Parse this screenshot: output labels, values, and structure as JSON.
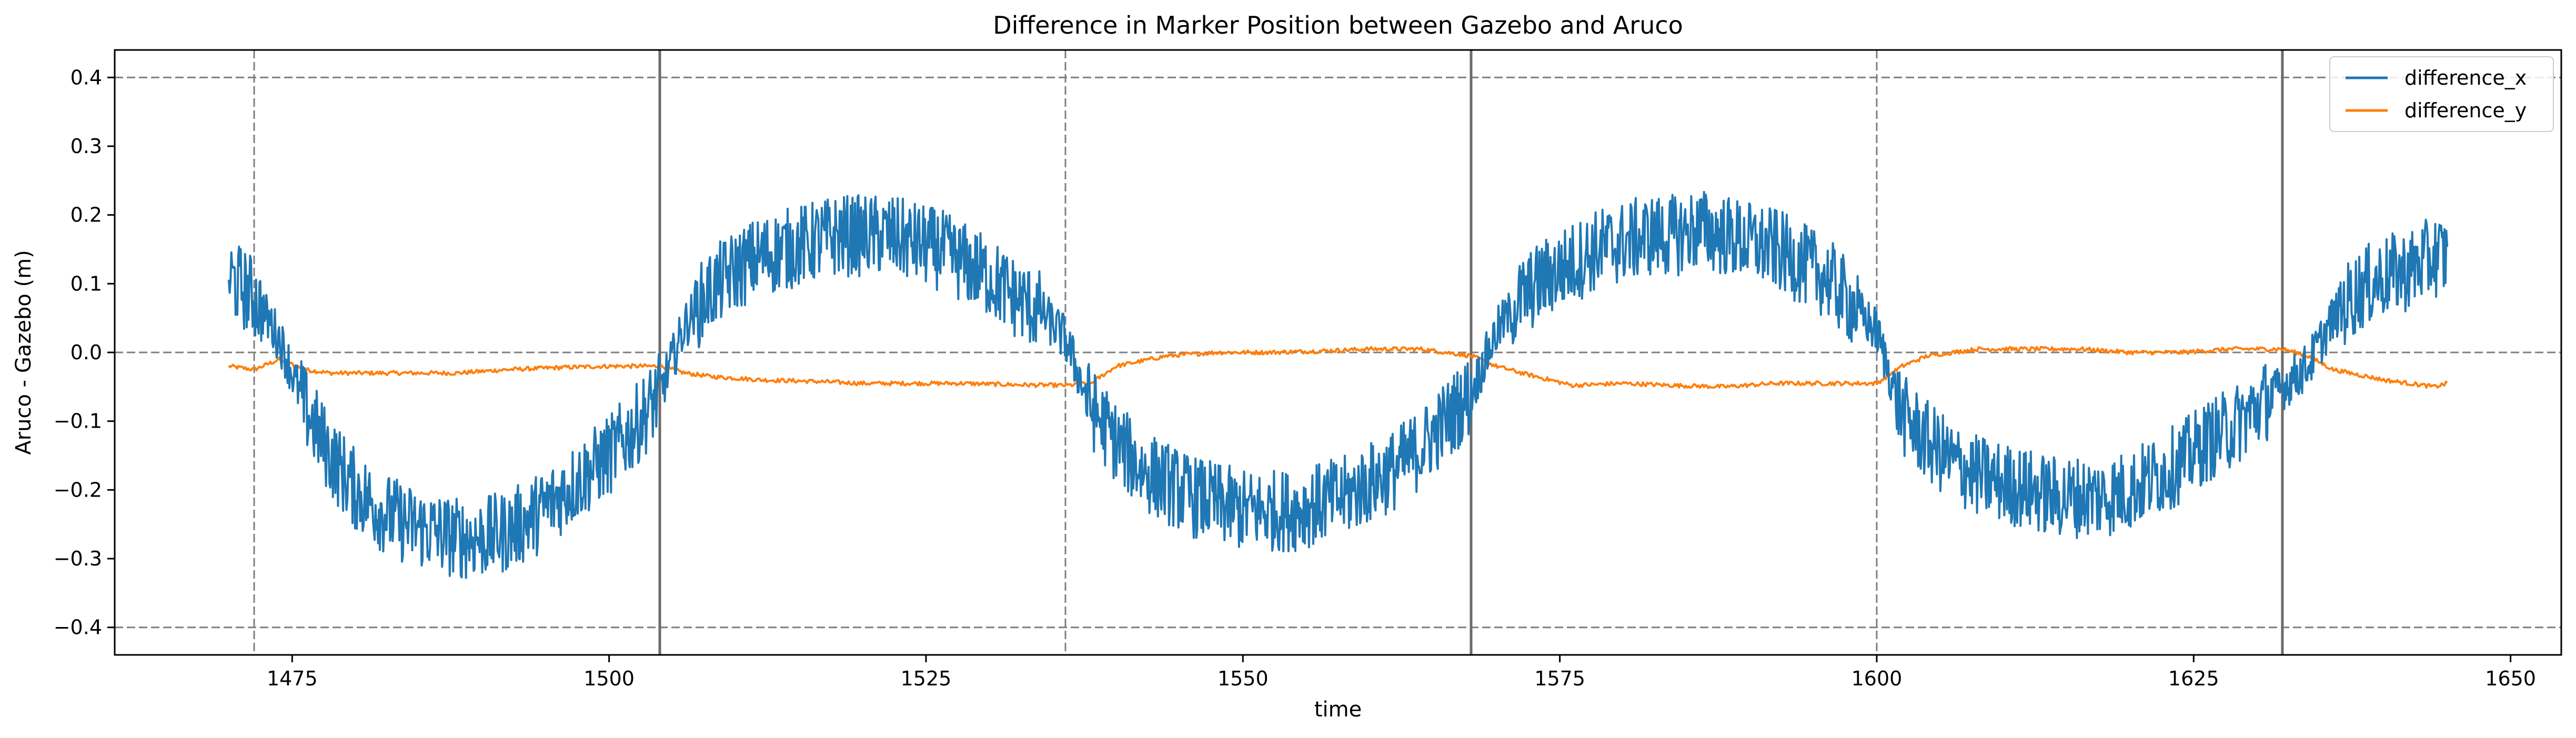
{
  "chart_data": {
    "type": "line",
    "title": "Difference in Marker Position between Gazebo and Aruco",
    "xlabel": "time",
    "ylabel": "Aruco - Gazebo (m)",
    "xlim": [
      1461,
      1654
    ],
    "ylim": [
      -0.44,
      0.44
    ],
    "xticks": [
      1475,
      1500,
      1525,
      1550,
      1575,
      1600,
      1625,
      1650
    ],
    "yticks": [
      -0.4,
      -0.3,
      -0.2,
      -0.1,
      0.0,
      0.1,
      0.2,
      0.3,
      0.4
    ],
    "ytick_labels": [
      "−0.4",
      "−0.3",
      "−0.2",
      "−0.1",
      "0.0",
      "0.1",
      "0.2",
      "0.3",
      "0.4"
    ],
    "legend_position": "top-right",
    "reference_lines": {
      "horizontal_dashed": [
        -0.4,
        0.0,
        0.4
      ],
      "vertical_dashed": [
        1472,
        1536,
        1600
      ],
      "vertical_solid": [
        1504,
        1568,
        1632
      ]
    },
    "series": [
      {
        "name": "difference_x",
        "color": "#1f77b4",
        "noise_amplitude": [
          0.035,
          0.06
        ],
        "x": [
          1470,
          1472,
          1474,
          1476,
          1478,
          1480,
          1482,
          1484,
          1486,
          1488,
          1490,
          1492,
          1494,
          1496,
          1498,
          1500,
          1502,
          1504,
          1506,
          1508,
          1510,
          1512,
          1514,
          1516,
          1518,
          1520,
          1522,
          1524,
          1526,
          1528,
          1530,
          1532,
          1534,
          1536,
          1538,
          1540,
          1542,
          1544,
          1546,
          1548,
          1550,
          1552,
          1554,
          1556,
          1558,
          1560,
          1562,
          1564,
          1566,
          1568,
          1570,
          1572,
          1574,
          1576,
          1578,
          1580,
          1582,
          1584,
          1586,
          1588,
          1590,
          1592,
          1594,
          1596,
          1598,
          1600,
          1602,
          1604,
          1606,
          1608,
          1610,
          1612,
          1614,
          1616,
          1618,
          1620,
          1622,
          1624,
          1626,
          1628,
          1630,
          1632,
          1634,
          1636,
          1638,
          1640,
          1642,
          1644,
          1645
        ],
        "y": [
          0.11,
          0.08,
          0.02,
          -0.08,
          -0.15,
          -0.2,
          -0.23,
          -0.25,
          -0.26,
          -0.27,
          -0.27,
          -0.26,
          -0.24,
          -0.21,
          -0.18,
          -0.15,
          -0.11,
          -0.06,
          0.04,
          0.09,
          0.12,
          0.14,
          0.15,
          0.16,
          0.17,
          0.17,
          0.17,
          0.16,
          0.15,
          0.13,
          0.11,
          0.08,
          0.06,
          0.02,
          -0.08,
          -0.13,
          -0.17,
          -0.19,
          -0.21,
          -0.22,
          -0.23,
          -0.23,
          -0.23,
          -0.22,
          -0.21,
          -0.19,
          -0.17,
          -0.14,
          -0.1,
          -0.06,
          0.03,
          0.08,
          0.11,
          0.13,
          0.15,
          0.16,
          0.17,
          0.17,
          0.18,
          0.17,
          0.16,
          0.15,
          0.13,
          0.11,
          0.07,
          0.03,
          -0.09,
          -0.13,
          -0.16,
          -0.18,
          -0.19,
          -0.2,
          -0.21,
          -0.21,
          -0.21,
          -0.2,
          -0.18,
          -0.16,
          -0.13,
          -0.11,
          -0.08,
          -0.05,
          -0.02,
          0.05,
          0.09,
          0.11,
          0.12,
          0.14,
          0.14
        ]
      },
      {
        "name": "difference_y",
        "color": "#ff7f0e",
        "noise_amplitude": [
          0.003,
          0.003
        ],
        "x": [
          1470,
          1472,
          1474,
          1476,
          1478,
          1480,
          1484,
          1488,
          1492,
          1496,
          1500,
          1504,
          1506,
          1508,
          1512,
          1516,
          1520,
          1524,
          1528,
          1532,
          1536,
          1538,
          1540,
          1544,
          1548,
          1552,
          1556,
          1560,
          1564,
          1568,
          1570,
          1572,
          1576,
          1580,
          1584,
          1588,
          1592,
          1596,
          1600,
          1602,
          1604,
          1608,
          1612,
          1616,
          1620,
          1624,
          1628,
          1632,
          1634,
          1636,
          1640,
          1644,
          1645
        ],
        "y": [
          -0.02,
          -0.025,
          -0.01,
          -0.025,
          -0.03,
          -0.03,
          -0.03,
          -0.03,
          -0.025,
          -0.022,
          -0.02,
          -0.02,
          -0.03,
          -0.035,
          -0.04,
          -0.042,
          -0.045,
          -0.045,
          -0.045,
          -0.047,
          -0.048,
          -0.045,
          -0.02,
          -0.005,
          0.0,
          0.0,
          0.002,
          0.005,
          0.005,
          -0.005,
          -0.02,
          -0.03,
          -0.048,
          -0.045,
          -0.048,
          -0.05,
          -0.045,
          -0.045,
          -0.045,
          -0.02,
          -0.005,
          0.005,
          0.005,
          0.005,
          0.0,
          0.0,
          0.005,
          0.005,
          -0.005,
          -0.025,
          -0.04,
          -0.05,
          -0.045
        ]
      }
    ]
  }
}
